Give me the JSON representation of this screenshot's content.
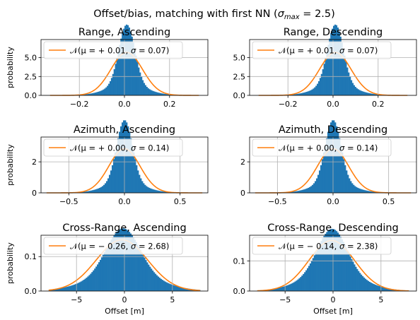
{
  "figure": {
    "title_main": "Offset/bias, matching with first NN (",
    "title_sigma": "σ",
    "title_sub": "max",
    "title_rest": " = 2.5)"
  },
  "colors": {
    "hist": "#1f77b4",
    "fit": "#ff7f0e",
    "grid": "#b0b0b0"
  },
  "chart_data": [
    {
      "type": "bar",
      "title": "Range, Ascending",
      "ylabel": "probability",
      "xlabel": "",
      "xlim": [
        -0.37,
        0.37
      ],
      "ylim": [
        0,
        7.4
      ],
      "xticks": [
        -0.2,
        0.0,
        0.2
      ],
      "xtick_labels": [
        "−0.2",
        "0.0",
        "0.2"
      ],
      "yticks": [
        0,
        2.5,
        5.0
      ],
      "ytick_labels": [
        "0.0",
        "2.5",
        "5.0"
      ],
      "hist": {
        "range": [
          -0.33,
          0.33
        ],
        "bins": 110,
        "center": 0.01,
        "core_sigma": 0.035,
        "core_weight": 0.7,
        "tail_sigma": 0.085
      },
      "fit": {
        "mu": 0.01,
        "sigma": 0.07
      },
      "legend": {
        "label_parts": [
          "(μ = + 0.01, ",
          "σ",
          " = 0.07)"
        ]
      }
    },
    {
      "type": "bar",
      "title": "Range, Descending",
      "ylabel": "",
      "xlabel": "",
      "xlim": [
        -0.37,
        0.37
      ],
      "ylim": [
        0,
        7.4
      ],
      "xticks": [
        -0.2,
        0.0,
        0.2
      ],
      "xtick_labels": [
        "−0.2",
        "0.0",
        "0.2"
      ],
      "yticks": [
        0,
        2.5,
        5.0
      ],
      "ytick_labels": [
        "0.0",
        "2.5",
        "5.0"
      ],
      "hist": {
        "range": [
          -0.33,
          0.33
        ],
        "bins": 110,
        "center": 0.01,
        "core_sigma": 0.035,
        "core_weight": 0.7,
        "tail_sigma": 0.085
      },
      "fit": {
        "mu": 0.01,
        "sigma": 0.07
      },
      "legend": {
        "label_parts": [
          "(μ = + 0.01, ",
          "σ",
          " = 0.07)"
        ]
      }
    },
    {
      "type": "bar",
      "title": "Azimuth, Ascending",
      "ylabel": "probability",
      "xlabel": "",
      "xlim": [
        -0.75,
        0.75
      ],
      "ylim": [
        0,
        3.6
      ],
      "xticks": [
        -0.5,
        0.0,
        0.5
      ],
      "xtick_labels": [
        "−0.5",
        "0.0",
        "0.5"
      ],
      "yticks": [
        0,
        2
      ],
      "ytick_labels": [
        "0",
        "2"
      ],
      "hist": {
        "range": [
          -0.7,
          0.7
        ],
        "bins": 110,
        "center": 0.0,
        "core_sigma": 0.07,
        "core_weight": 0.7,
        "tail_sigma": 0.17
      },
      "fit": {
        "mu": 0.0,
        "sigma": 0.14
      },
      "legend": {
        "label_parts": [
          "(μ = + 0.00, ",
          "σ",
          " = 0.14)"
        ]
      }
    },
    {
      "type": "bar",
      "title": "Azimuth, Descending",
      "ylabel": "",
      "xlabel": "",
      "xlim": [
        -0.75,
        0.75
      ],
      "ylim": [
        0,
        3.6
      ],
      "xticks": [
        -0.5,
        0.0,
        0.5
      ],
      "xtick_labels": [
        "−0.5",
        "0.0",
        "0.5"
      ],
      "yticks": [
        0,
        2
      ],
      "ytick_labels": [
        "0",
        "2"
      ],
      "hist": {
        "range": [
          -0.7,
          0.7
        ],
        "bins": 110,
        "center": 0.0,
        "core_sigma": 0.07,
        "core_weight": 0.7,
        "tail_sigma": 0.17
      },
      "fit": {
        "mu": 0.0,
        "sigma": 0.14
      },
      "legend": {
        "label_parts": [
          "(μ = + 0.00, ",
          "σ",
          " = 0.14)"
        ]
      }
    },
    {
      "type": "bar",
      "title": "Cross-Range, Ascending",
      "ylabel": "probability",
      "xlabel": "Offset [m]",
      "xlim": [
        -8.7,
        8.7
      ],
      "ylim": [
        0,
        0.162
      ],
      "xticks": [
        -5,
        0,
        5
      ],
      "xtick_labels": [
        "−5",
        "0",
        "5"
      ],
      "yticks": [
        0,
        0.1
      ],
      "ytick_labels": [
        "0.0",
        "0.1"
      ],
      "hist": {
        "range": [
          -7.9,
          7.9
        ],
        "bins": 110,
        "center": -0.15,
        "core_sigma": 1.7,
        "core_weight": 0.55,
        "tail_sigma": 3.4
      },
      "fit": {
        "mu": -0.26,
        "sigma": 2.68
      },
      "legend": {
        "label_parts": [
          "(μ = − 0.26, ",
          "σ",
          " = 2.68)"
        ]
      }
    },
    {
      "type": "bar",
      "title": "Cross-Range, Descending",
      "ylabel": "",
      "xlabel": "Offset [m]",
      "xlim": [
        -8.7,
        8.7
      ],
      "ylim": [
        0,
        0.185
      ],
      "xticks": [
        -5,
        0,
        5
      ],
      "xtick_labels": [
        "−5",
        "0",
        "5"
      ],
      "yticks": [
        0,
        0.1
      ],
      "ytick_labels": [
        "0.0",
        "0.1"
      ],
      "hist": {
        "range": [
          -7.9,
          7.9
        ],
        "bins": 110,
        "center": -0.1,
        "core_sigma": 1.5,
        "core_weight": 0.55,
        "tail_sigma": 3.0
      },
      "fit": {
        "mu": -0.14,
        "sigma": 2.38
      },
      "legend": {
        "label_parts": [
          "(μ = − 0.14, ",
          "σ",
          " = 2.38)"
        ]
      }
    }
  ]
}
